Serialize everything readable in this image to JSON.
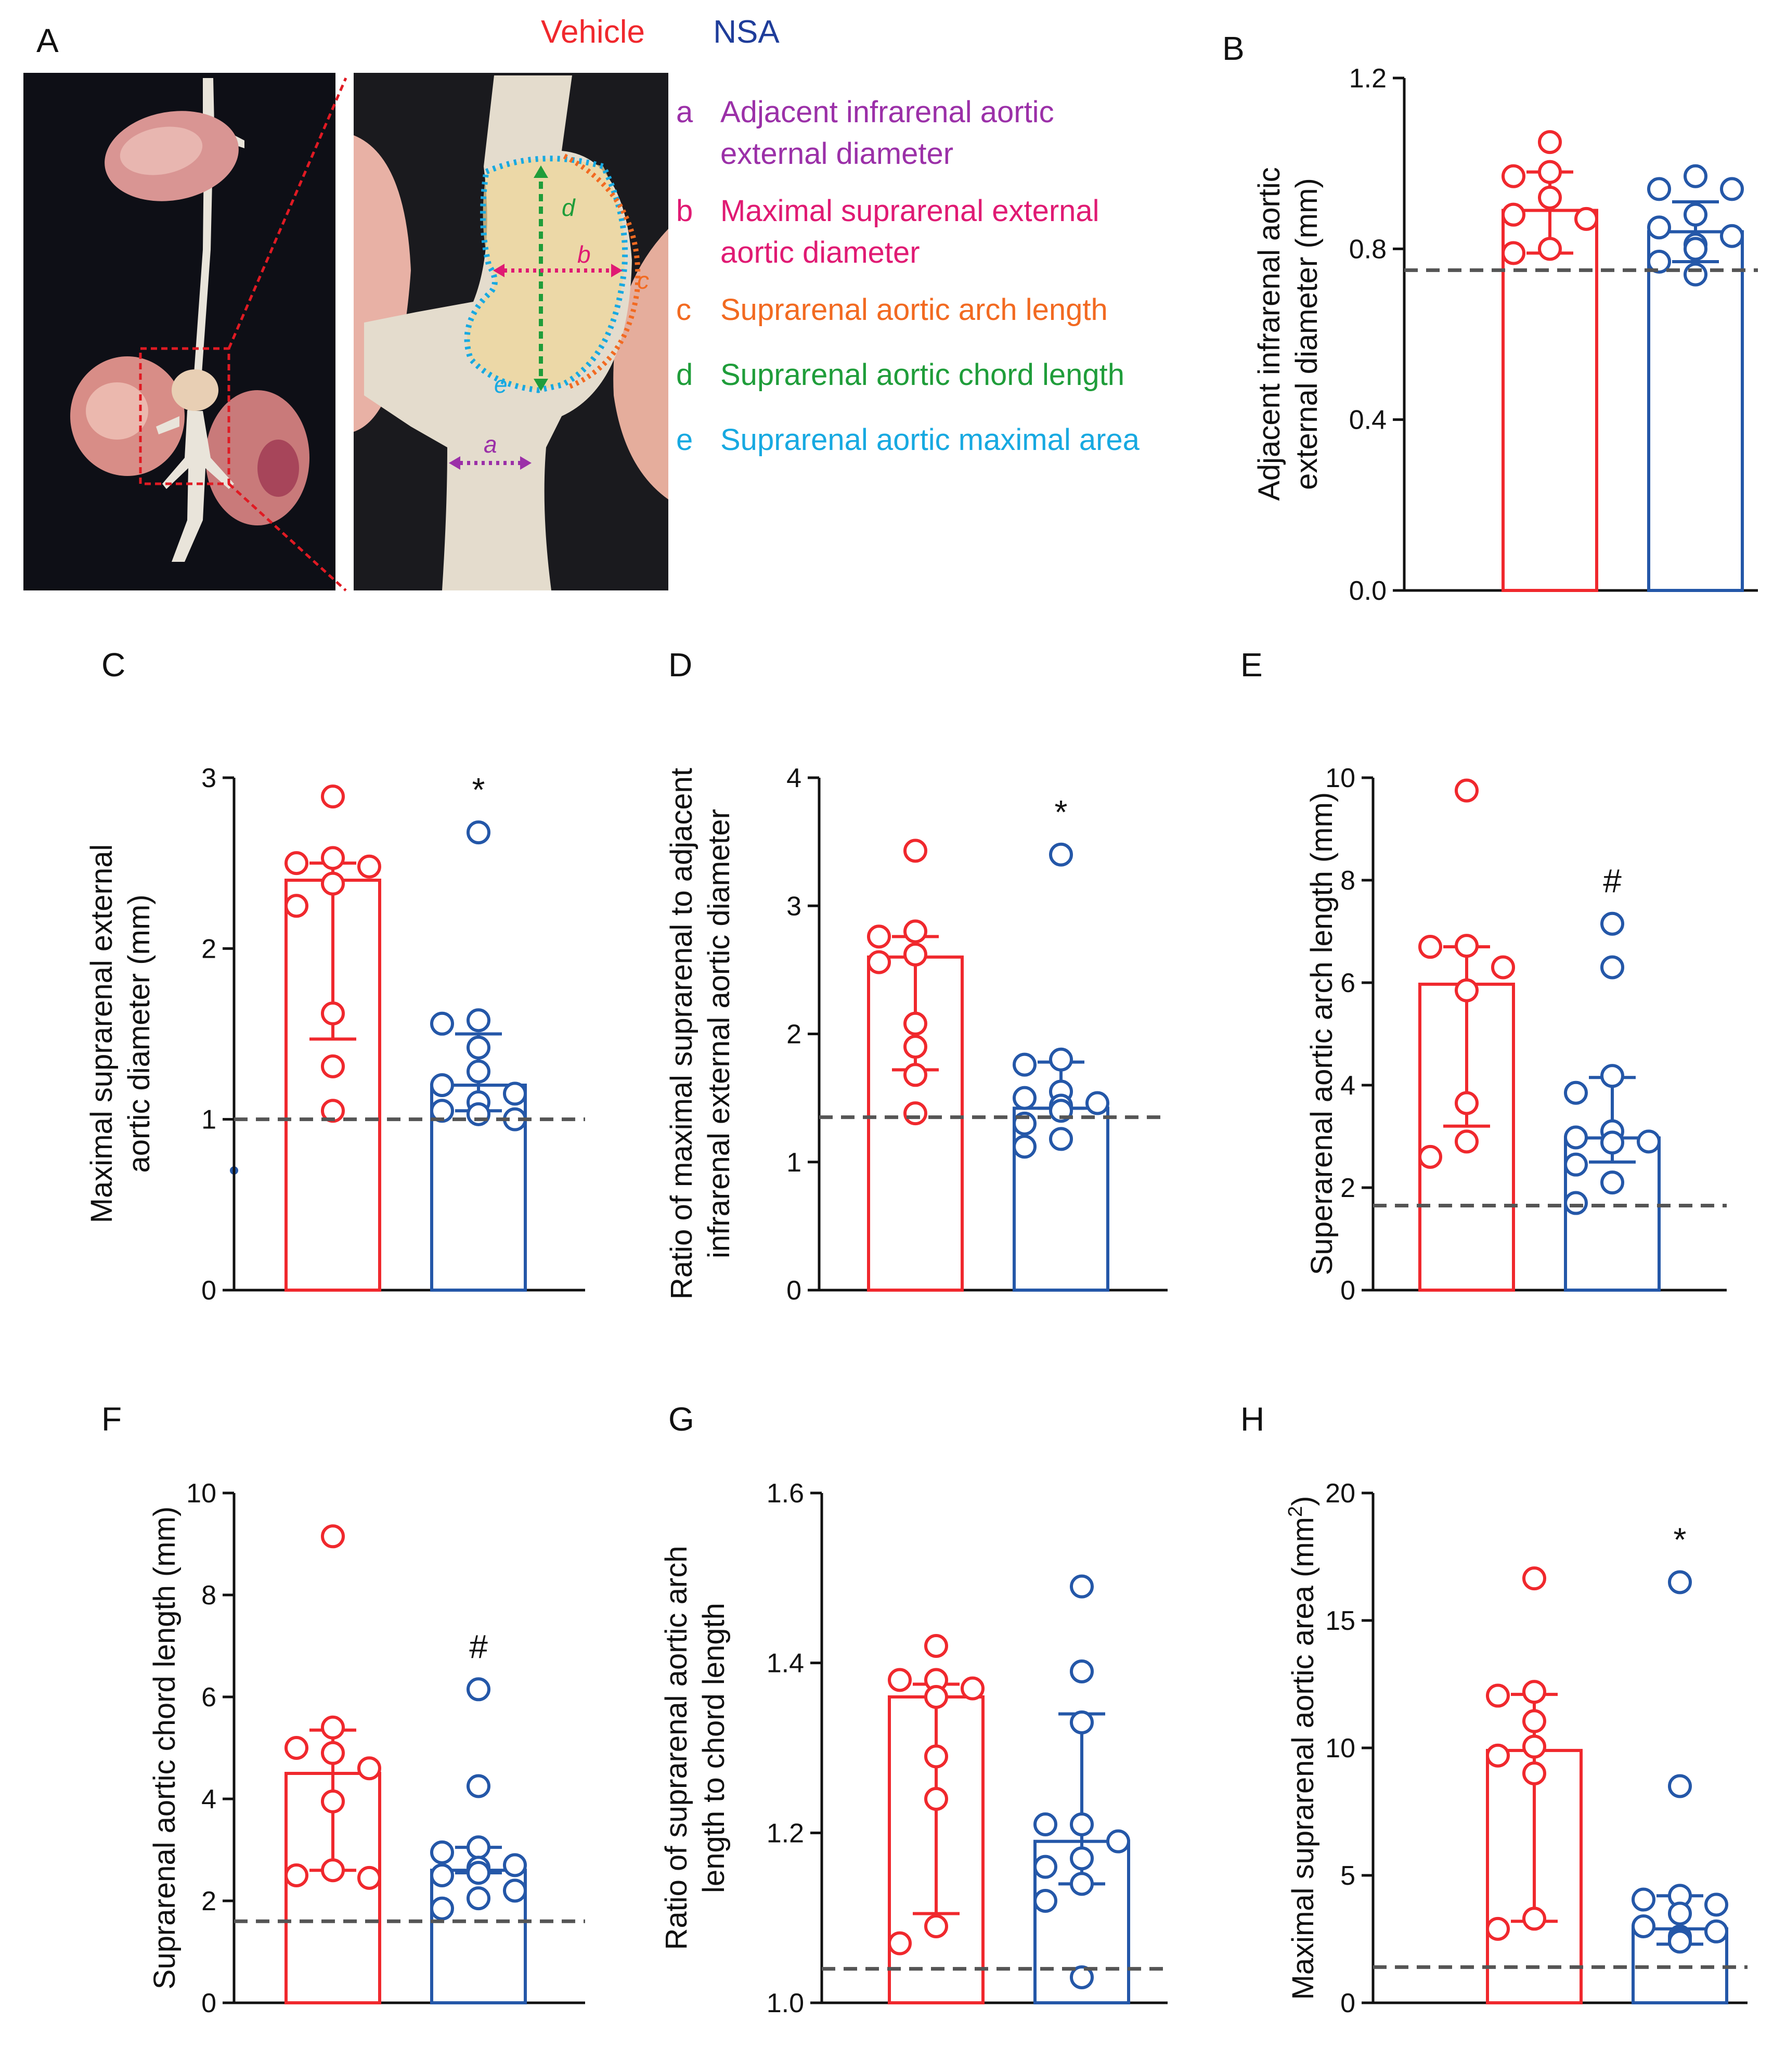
{
  "colors": {
    "vehicle": "#f0282d",
    "nsa": "#2457a8",
    "purple": "#9b30a8",
    "pink": "#e01a73",
    "orange": "#f26a21",
    "green": "#1f9d3a",
    "cyan": "#17a9e1",
    "reference_line": "#555555"
  },
  "panel_a": {
    "letter": "A",
    "groups": {
      "vehicle": "Vehicle",
      "nsa": "NSA"
    },
    "legend": [
      {
        "key": "a",
        "text_line1": "Adjacent infrarenal aortic",
        "text_line2": "external diameter",
        "color": "#9b30a8"
      },
      {
        "key": "b",
        "text_line1": "Maximal suprarenal external",
        "text_line2": "aortic diameter",
        "color": "#e01a73"
      },
      {
        "key": "c",
        "text_line1": "Suprarenal aortic arch length",
        "text_line2": "",
        "color": "#f26a21"
      },
      {
        "key": "d",
        "text_line1": "Suprarenal aortic chord length",
        "text_line2": "",
        "color": "#1f9d3a"
      },
      {
        "key": "e",
        "text_line1": "Suprarenal aortic maximal area",
        "text_line2": "",
        "color": "#17a9e1"
      }
    ],
    "photo_markers": {
      "a": "a",
      "b": "b",
      "c": "c",
      "d": "d",
      "e": "e"
    }
  },
  "chart_data": [
    {
      "panel": "B",
      "type": "bar",
      "ylabel_line1": "Adjacent infrarenal aortic",
      "ylabel_line2": "external diameter (mm)",
      "ylim": [
        0,
        1.2
      ],
      "yticks": [
        0,
        0.4,
        0.8,
        1.2
      ],
      "ytick_labels": [
        "0.0",
        "0.4",
        "0.8",
        "1.2"
      ],
      "reference_line": 0.75,
      "categories": [
        "Vehicle",
        "NSA"
      ],
      "series": [
        {
          "name": "Vehicle",
          "bar": 0.89,
          "err_low": 0.79,
          "err_high": 0.98,
          "points": [
            1.05,
            0.98,
            0.97,
            0.92,
            0.88,
            0.87,
            0.8,
            0.79
          ]
        },
        {
          "name": "NSA",
          "bar": 0.84,
          "err_low": 0.77,
          "err_high": 0.91,
          "points": [
            0.97,
            0.94,
            0.94,
            0.88,
            0.85,
            0.83,
            0.81,
            0.8,
            0.77,
            0.74
          ]
        }
      ],
      "annotation": ""
    },
    {
      "panel": "C",
      "type": "bar",
      "ylabel_line1": "Maximal suprarenal external",
      "ylabel_line2": "aortic diameter (mm)",
      "ylim": [
        0,
        3
      ],
      "yticks": [
        0,
        1,
        2,
        3
      ],
      "ytick_labels": [
        "0",
        "1",
        "2",
        "3"
      ],
      "reference_line": 1.0,
      "categories": [
        "Vehicle",
        "NSA"
      ],
      "series": [
        {
          "name": "Vehicle",
          "bar": 2.4,
          "err_low": 1.47,
          "err_high": 2.5,
          "points": [
            2.89,
            2.53,
            2.5,
            2.48,
            2.38,
            2.25,
            1.62,
            1.31,
            1.05
          ]
        },
        {
          "name": "NSA",
          "bar": 1.2,
          "err_low": 1.05,
          "err_high": 1.5,
          "points": [
            2.68,
            1.58,
            1.56,
            1.42,
            1.28,
            1.2,
            1.15,
            1.1,
            1.05,
            1.03,
            1.0
          ]
        }
      ],
      "annotation": "*"
    },
    {
      "panel": "D",
      "type": "bar",
      "ylabel_line1": "Ratio of maximal suprarenal to adjacent",
      "ylabel_line2": "infrarenal external aortic diameter",
      "ylim": [
        0,
        4
      ],
      "yticks": [
        0,
        1,
        2,
        3,
        4
      ],
      "ytick_labels": [
        "0",
        "1",
        "2",
        "3",
        "4"
      ],
      "reference_line": 1.35,
      "categories": [
        "Vehicle",
        "NSA"
      ],
      "series": [
        {
          "name": "Vehicle",
          "bar": 2.6,
          "err_low": 1.72,
          "err_high": 2.76,
          "points": [
            3.43,
            2.8,
            2.76,
            2.62,
            2.56,
            2.08,
            1.9,
            1.68,
            1.38
          ]
        },
        {
          "name": "NSA",
          "bar": 1.42,
          "err_low": 1.42,
          "err_high": 1.78,
          "points": [
            3.4,
            1.8,
            1.76,
            1.55,
            1.5,
            1.46,
            1.44,
            1.4,
            1.3,
            1.18,
            1.12
          ]
        }
      ],
      "annotation": "*"
    },
    {
      "panel": "E",
      "type": "bar",
      "ylabel_line1": "Superarenal aortic arch length (mm)",
      "ylabel_line2": "",
      "ylim": [
        0,
        10
      ],
      "yticks": [
        0,
        2,
        4,
        6,
        8,
        10
      ],
      "ytick_labels": [
        "0",
        "2",
        "4",
        "6",
        "8",
        "10"
      ],
      "reference_line": 1.65,
      "categories": [
        "Vehicle",
        "NSA"
      ],
      "series": [
        {
          "name": "Vehicle",
          "bar": 5.97,
          "err_low": 3.2,
          "err_high": 6.7,
          "points": [
            9.75,
            6.72,
            6.7,
            6.3,
            5.85,
            3.65,
            2.9,
            2.6
          ]
        },
        {
          "name": "NSA",
          "bar": 2.97,
          "err_low": 2.5,
          "err_high": 4.15,
          "points": [
            7.15,
            6.3,
            4.18,
            3.85,
            3.1,
            2.98,
            2.9,
            2.88,
            2.45,
            2.1,
            1.7
          ]
        }
      ],
      "annotation": "#"
    },
    {
      "panel": "F",
      "type": "bar",
      "ylabel_line1": "Suprarenal aortic chord length (mm)",
      "ylabel_line2": "",
      "ylim": [
        0,
        10
      ],
      "yticks": [
        0,
        2,
        4,
        6,
        8,
        10
      ],
      "ytick_labels": [
        "0",
        "2",
        "4",
        "6",
        "8",
        "10"
      ],
      "reference_line": 1.6,
      "categories": [
        "Vehicle",
        "NSA"
      ],
      "series": [
        {
          "name": "Vehicle",
          "bar": 4.5,
          "err_low": 2.6,
          "err_high": 5.35,
          "points": [
            9.15,
            5.4,
            5.0,
            4.9,
            4.6,
            3.95,
            2.6,
            2.5,
            2.45
          ]
        },
        {
          "name": "NSA",
          "bar": 2.6,
          "err_low": 2.55,
          "err_high": 3.05,
          "points": [
            6.15,
            4.25,
            3.05,
            2.95,
            2.7,
            2.65,
            2.55,
            2.5,
            2.2,
            2.05,
            1.85
          ]
        }
      ],
      "annotation": "#"
    },
    {
      "panel": "G",
      "type": "bar",
      "ylabel_line1": "Ratio of suprarenal aortic arch",
      "ylabel_line2": "length to chord length",
      "ylim": [
        1.0,
        1.6
      ],
      "yticks": [
        1.0,
        1.2,
        1.4,
        1.6
      ],
      "ytick_labels": [
        "1.0",
        "1.2",
        "1.4",
        "1.6"
      ],
      "reference_line": 1.04,
      "categories": [
        "Vehicle",
        "NSA"
      ],
      "series": [
        {
          "name": "Vehicle",
          "bar": 1.36,
          "err_low": 1.105,
          "err_high": 1.375,
          "points": [
            1.42,
            1.38,
            1.38,
            1.37,
            1.36,
            1.29,
            1.24,
            1.09,
            1.07
          ]
        },
        {
          "name": "NSA",
          "bar": 1.19,
          "err_low": 1.14,
          "err_high": 1.34,
          "points": [
            1.49,
            1.39,
            1.33,
            1.21,
            1.21,
            1.19,
            1.17,
            1.16,
            1.14,
            1.12,
            1.03
          ]
        }
      ],
      "annotation": ""
    },
    {
      "panel": "H",
      "type": "bar",
      "ylabel_line1": "Maximal suprarenal aortic area (mm",
      "ylabel_sup": "2",
      "ylabel_suffix": ")",
      "ylim": [
        0,
        20
      ],
      "yticks": [
        0,
        5,
        10,
        15,
        20
      ],
      "ytick_labels": [
        "0",
        "5",
        "10",
        "15",
        "20"
      ],
      "reference_line": 1.4,
      "categories": [
        "Vehicle",
        "NSA"
      ],
      "series": [
        {
          "name": "Vehicle",
          "bar": 9.9,
          "err_low": 3.2,
          "err_high": 12.1,
          "points": [
            16.65,
            12.2,
            12.05,
            11.05,
            10.05,
            9.7,
            9.0,
            3.3,
            2.9
          ]
        },
        {
          "name": "NSA",
          "bar": 2.9,
          "err_low": 2.3,
          "err_high": 4.2,
          "points": [
            16.5,
            8.5,
            4.2,
            4.05,
            3.85,
            3.5,
            3.0,
            2.8,
            2.6,
            2.5,
            2.4
          ]
        }
      ],
      "annotation": "*"
    }
  ]
}
